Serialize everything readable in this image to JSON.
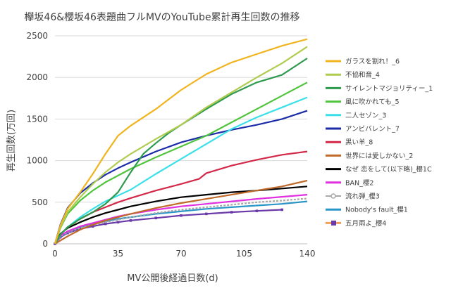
{
  "chart_data": {
    "type": "line",
    "title": "欅坂46&櫻坂46表題曲フルMVのYouTube累計再生回数の推移",
    "xlabel": "MV公開後経過日数(d)",
    "ylabel": "再生回数(万回)",
    "xlim": [
      0,
      140
    ],
    "ylim": [
      0,
      2500
    ],
    "xticks": [
      0,
      35,
      70,
      105,
      140
    ],
    "yticks": [
      0,
      500,
      1000,
      1500,
      2000,
      2500
    ],
    "grid": "horizontal",
    "legend_position": "right",
    "series": [
      {
        "name": "ガラスを割れ！_6",
        "color": "#f0b41e",
        "x": [
          0,
          3,
          7,
          14,
          21,
          28,
          35,
          42,
          56,
          70,
          84,
          98,
          112,
          126,
          140
        ],
        "y": [
          0,
          220,
          420,
          620,
          840,
          1080,
          1300,
          1420,
          1620,
          1850,
          2040,
          2180,
          2280,
          2380,
          2460
        ]
      },
      {
        "name": "不協和音_4",
        "color": "#b0cc50",
        "x": [
          0,
          3,
          7,
          14,
          21,
          28,
          35,
          42,
          56,
          70,
          84,
          98,
          112,
          126,
          140
        ],
        "y": [
          0,
          200,
          380,
          560,
          720,
          860,
          980,
          1080,
          1260,
          1430,
          1640,
          1820,
          2000,
          2170,
          2370
        ]
      },
      {
        "name": "サイレントマジョリティー_1",
        "color": "#2e9a4e",
        "x": [
          0,
          3,
          7,
          14,
          21,
          28,
          35,
          42,
          49,
          56,
          63,
          70,
          84,
          98,
          112,
          126,
          140
        ],
        "y": [
          0,
          110,
          200,
          300,
          380,
          480,
          620,
          860,
          1080,
          1210,
          1330,
          1430,
          1620,
          1800,
          1940,
          2030,
          2230
        ]
      },
      {
        "name": "風に吹かれても_5",
        "color": "#50c43c",
        "x": [
          0,
          3,
          7,
          14,
          21,
          28,
          35,
          42,
          56,
          70,
          84,
          98,
          112,
          126,
          140
        ],
        "y": [
          0,
          190,
          360,
          520,
          640,
          740,
          820,
          900,
          1040,
          1170,
          1300,
          1460,
          1620,
          1780,
          1940
        ]
      },
      {
        "name": "二人セゾン_3",
        "color": "#3ae0e8",
        "x": [
          0,
          3,
          7,
          14,
          21,
          28,
          35,
          42,
          56,
          70,
          84,
          98,
          112,
          126,
          140
        ],
        "y": [
          0,
          110,
          200,
          320,
          420,
          510,
          580,
          650,
          840,
          1020,
          1200,
          1380,
          1520,
          1640,
          1760
        ]
      },
      {
        "name": "アンビバレント_7",
        "color": "#1c2ca8",
        "x": [
          0,
          3,
          7,
          14,
          21,
          28,
          35,
          42,
          56,
          70,
          84,
          98,
          112,
          126,
          140
        ],
        "y": [
          0,
          230,
          430,
          610,
          730,
          830,
          910,
          980,
          1110,
          1220,
          1300,
          1370,
          1430,
          1500,
          1600
        ]
      },
      {
        "name": "黒い羊_8",
        "color": "#d42848",
        "x": [
          0,
          3,
          7,
          14,
          21,
          28,
          35,
          42,
          56,
          70,
          80,
          84,
          98,
          112,
          126,
          140
        ],
        "y": [
          0,
          110,
          200,
          300,
          380,
          440,
          500,
          550,
          640,
          720,
          780,
          850,
          940,
          1010,
          1070,
          1110
        ]
      },
      {
        "name": "世界には愛しかない_2",
        "color": "#c06a2a",
        "x": [
          0,
          3,
          7,
          14,
          21,
          28,
          35,
          42,
          56,
          70,
          84,
          98,
          112,
          126,
          140
        ],
        "y": [
          0,
          40,
          90,
          170,
          230,
          280,
          320,
          360,
          430,
          490,
          540,
          590,
          640,
          690,
          760
        ]
      },
      {
        "name": "なぜ 恋をして(以下略)_櫻1C",
        "color": "#000000",
        "x": [
          0,
          3,
          7,
          14,
          21,
          28,
          35,
          42,
          56,
          70,
          84,
          98,
          112,
          126,
          140
        ],
        "y": [
          0,
          120,
          190,
          260,
          320,
          370,
          410,
          450,
          510,
          560,
          590,
          620,
          640,
          665,
          690
        ]
      },
      {
        "name": "BAN_櫻2",
        "color": "#e030e0",
        "x": [
          0,
          3,
          7,
          14,
          21,
          28,
          35,
          42,
          56,
          70,
          84,
          98,
          112,
          126,
          140
        ],
        "y": [
          0,
          100,
          150,
          210,
          250,
          290,
          330,
          360,
          410,
          450,
          480,
          510,
          540,
          565,
          590
        ]
      },
      {
        "name": "流れ弾_櫻3",
        "color": "#a8a8a8",
        "x": [
          0,
          3,
          7,
          14,
          21,
          28,
          35,
          42,
          56,
          70,
          84,
          98,
          112,
          126,
          140
        ],
        "y": [
          0,
          90,
          140,
          190,
          230,
          260,
          290,
          320,
          370,
          410,
          440,
          470,
          500,
          520,
          545
        ]
      },
      {
        "name": "Nobody's fault_櫻1",
        "color": "#2a96c8",
        "x": [
          0,
          3,
          7,
          14,
          21,
          28,
          35,
          42,
          56,
          70,
          84,
          98,
          112,
          126,
          140
        ],
        "y": [
          0,
          90,
          140,
          200,
          240,
          270,
          300,
          320,
          360,
          390,
          420,
          440,
          460,
          480,
          510
        ]
      },
      {
        "name": "五月雨よ_櫻4",
        "color": "#6a3aa8",
        "x": [
          0,
          3,
          7,
          14,
          21,
          28,
          35,
          42,
          56,
          70,
          84,
          98,
          112,
          126
        ],
        "y": [
          0,
          80,
          130,
          180,
          210,
          240,
          260,
          280,
          310,
          340,
          360,
          380,
          395,
          410
        ]
      }
    ]
  }
}
